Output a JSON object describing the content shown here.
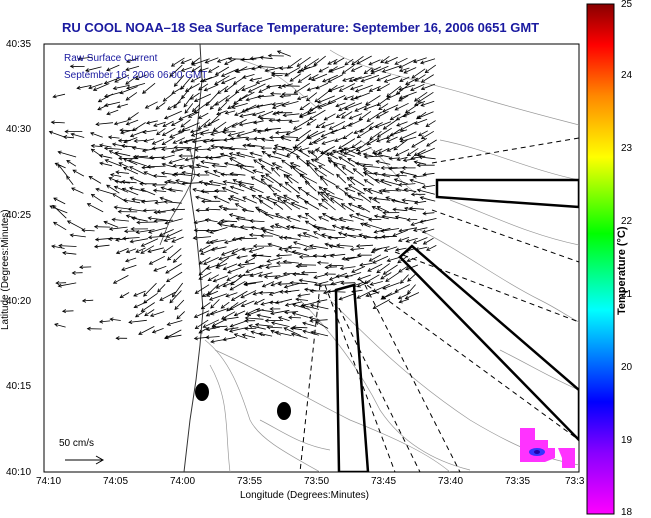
{
  "title": "RU COOL  NOAA–18  Sea Surface Temperature:  September 16, 2006 0651 GMT",
  "legend": {
    "line1": "Raw Surface Current",
    "line2": "September 16, 2006 06:00 GMT"
  },
  "scale_label": "50 cm/s",
  "axes": {
    "xlabel": "Longitude (Degrees:Minutes)",
    "ylabel": "Latitude (Degrees:Minutes)",
    "xticks": [
      "74:10",
      "74:05",
      "74:00",
      "73:55",
      "73:50",
      "73:45",
      "73:40",
      "73:35",
      "73:3"
    ],
    "yticks": [
      "40:35",
      "40:30",
      "40:25",
      "40:20",
      "40:15",
      "40:10"
    ]
  },
  "colorbar": {
    "title": "Temperature (°C)",
    "ticks": [
      "25",
      "24",
      "23",
      "22",
      "21",
      "20",
      "19",
      "18"
    ],
    "range": [
      18,
      25
    ],
    "colors": [
      "#ff00ff",
      "#8800ff",
      "#0000ff",
      "#00ffff",
      "#00ff00",
      "#ffff00",
      "#ff8800",
      "#ff0000",
      "#880000"
    ]
  },
  "colors": {
    "title": "#1a1aa0",
    "land": "#ffffff",
    "vectors": "#000000"
  }
}
